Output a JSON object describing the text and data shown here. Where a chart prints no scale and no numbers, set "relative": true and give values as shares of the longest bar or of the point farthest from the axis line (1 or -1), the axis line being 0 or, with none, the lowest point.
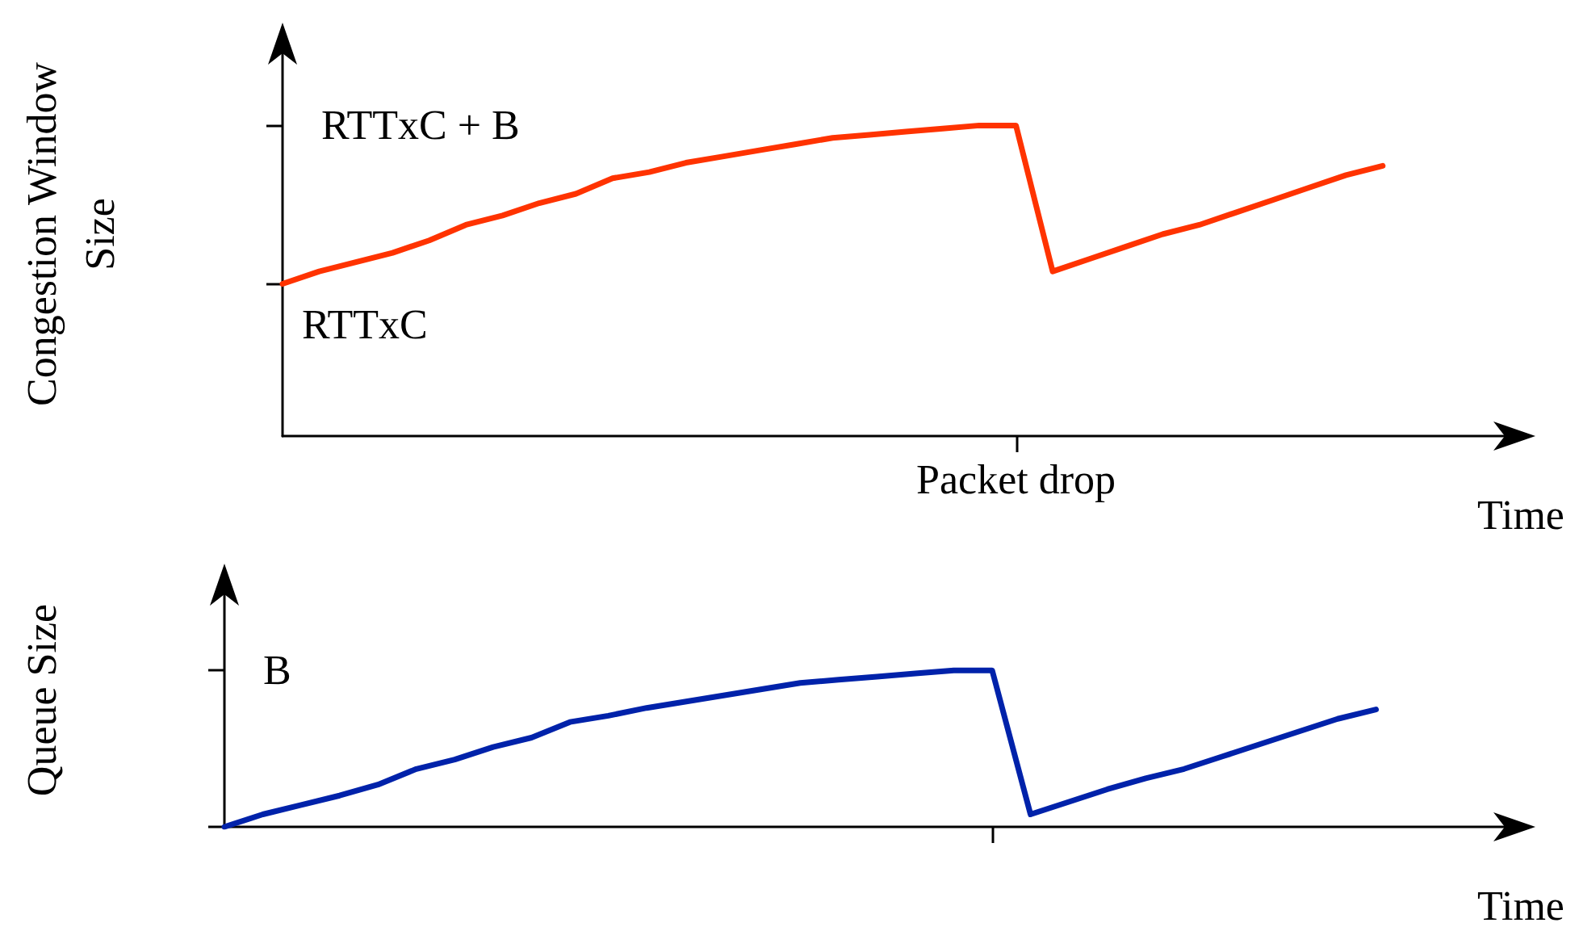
{
  "chart_data": [
    {
      "type": "line",
      "relative": true,
      "ylabel": "Congestion Window\nSize",
      "xlabel": "Time",
      "categories": [
        null,
        null,
        null,
        null,
        null,
        null,
        null,
        null,
        null,
        null,
        null,
        null,
        null,
        null,
        null,
        null,
        null,
        null,
        null,
        null,
        null,
        null,
        null,
        null,
        null,
        null,
        null,
        null,
        null,
        null,
        null
      ],
      "series": [
        {
          "color": "#ff3300",
          "values": [
            0.49,
            0.53,
            0.56,
            0.59,
            0.63,
            0.68,
            0.71,
            0.75,
            0.78,
            0.83,
            0.85,
            0.88,
            0.9,
            0.92,
            0.94,
            0.96,
            0.97,
            0.98,
            0.99,
            1,
            1,
            0.53,
            0.57,
            0.61,
            0.65,
            0.68,
            0.72,
            0.76,
            0.8,
            0.84,
            0.87
          ]
        }
      ],
      "annotations": [
        "RTTxC",
        "RTTxC + B",
        "Packet drop"
      ],
      "grid": false,
      "marker": "none",
      "line_style": "solid"
    },
    {
      "type": "line",
      "relative": true,
      "ylabel": "Queue Size",
      "xlabel": "Time",
      "categories": [
        null,
        null,
        null,
        null,
        null,
        null,
        null,
        null,
        null,
        null,
        null,
        null,
        null,
        null,
        null,
        null,
        null,
        null,
        null,
        null,
        null,
        null,
        null,
        null,
        null,
        null,
        null,
        null,
        null,
        null,
        null
      ],
      "series": [
        {
          "color": "#0022aa",
          "values": [
            0,
            0.08,
            0.14,
            0.2,
            0.27,
            0.37,
            0.43,
            0.51,
            0.57,
            0.67,
            0.71,
            0.76,
            0.8,
            0.84,
            0.88,
            0.92,
            0.94,
            0.96,
            0.98,
            1,
            1,
            0.08,
            0.16,
            0.24,
            0.31,
            0.37,
            0.45,
            0.53,
            0.61,
            0.69,
            0.75
          ]
        }
      ],
      "annotations": [
        "B"
      ],
      "grid": false,
      "marker": "none",
      "line_style": "solid"
    }
  ]
}
